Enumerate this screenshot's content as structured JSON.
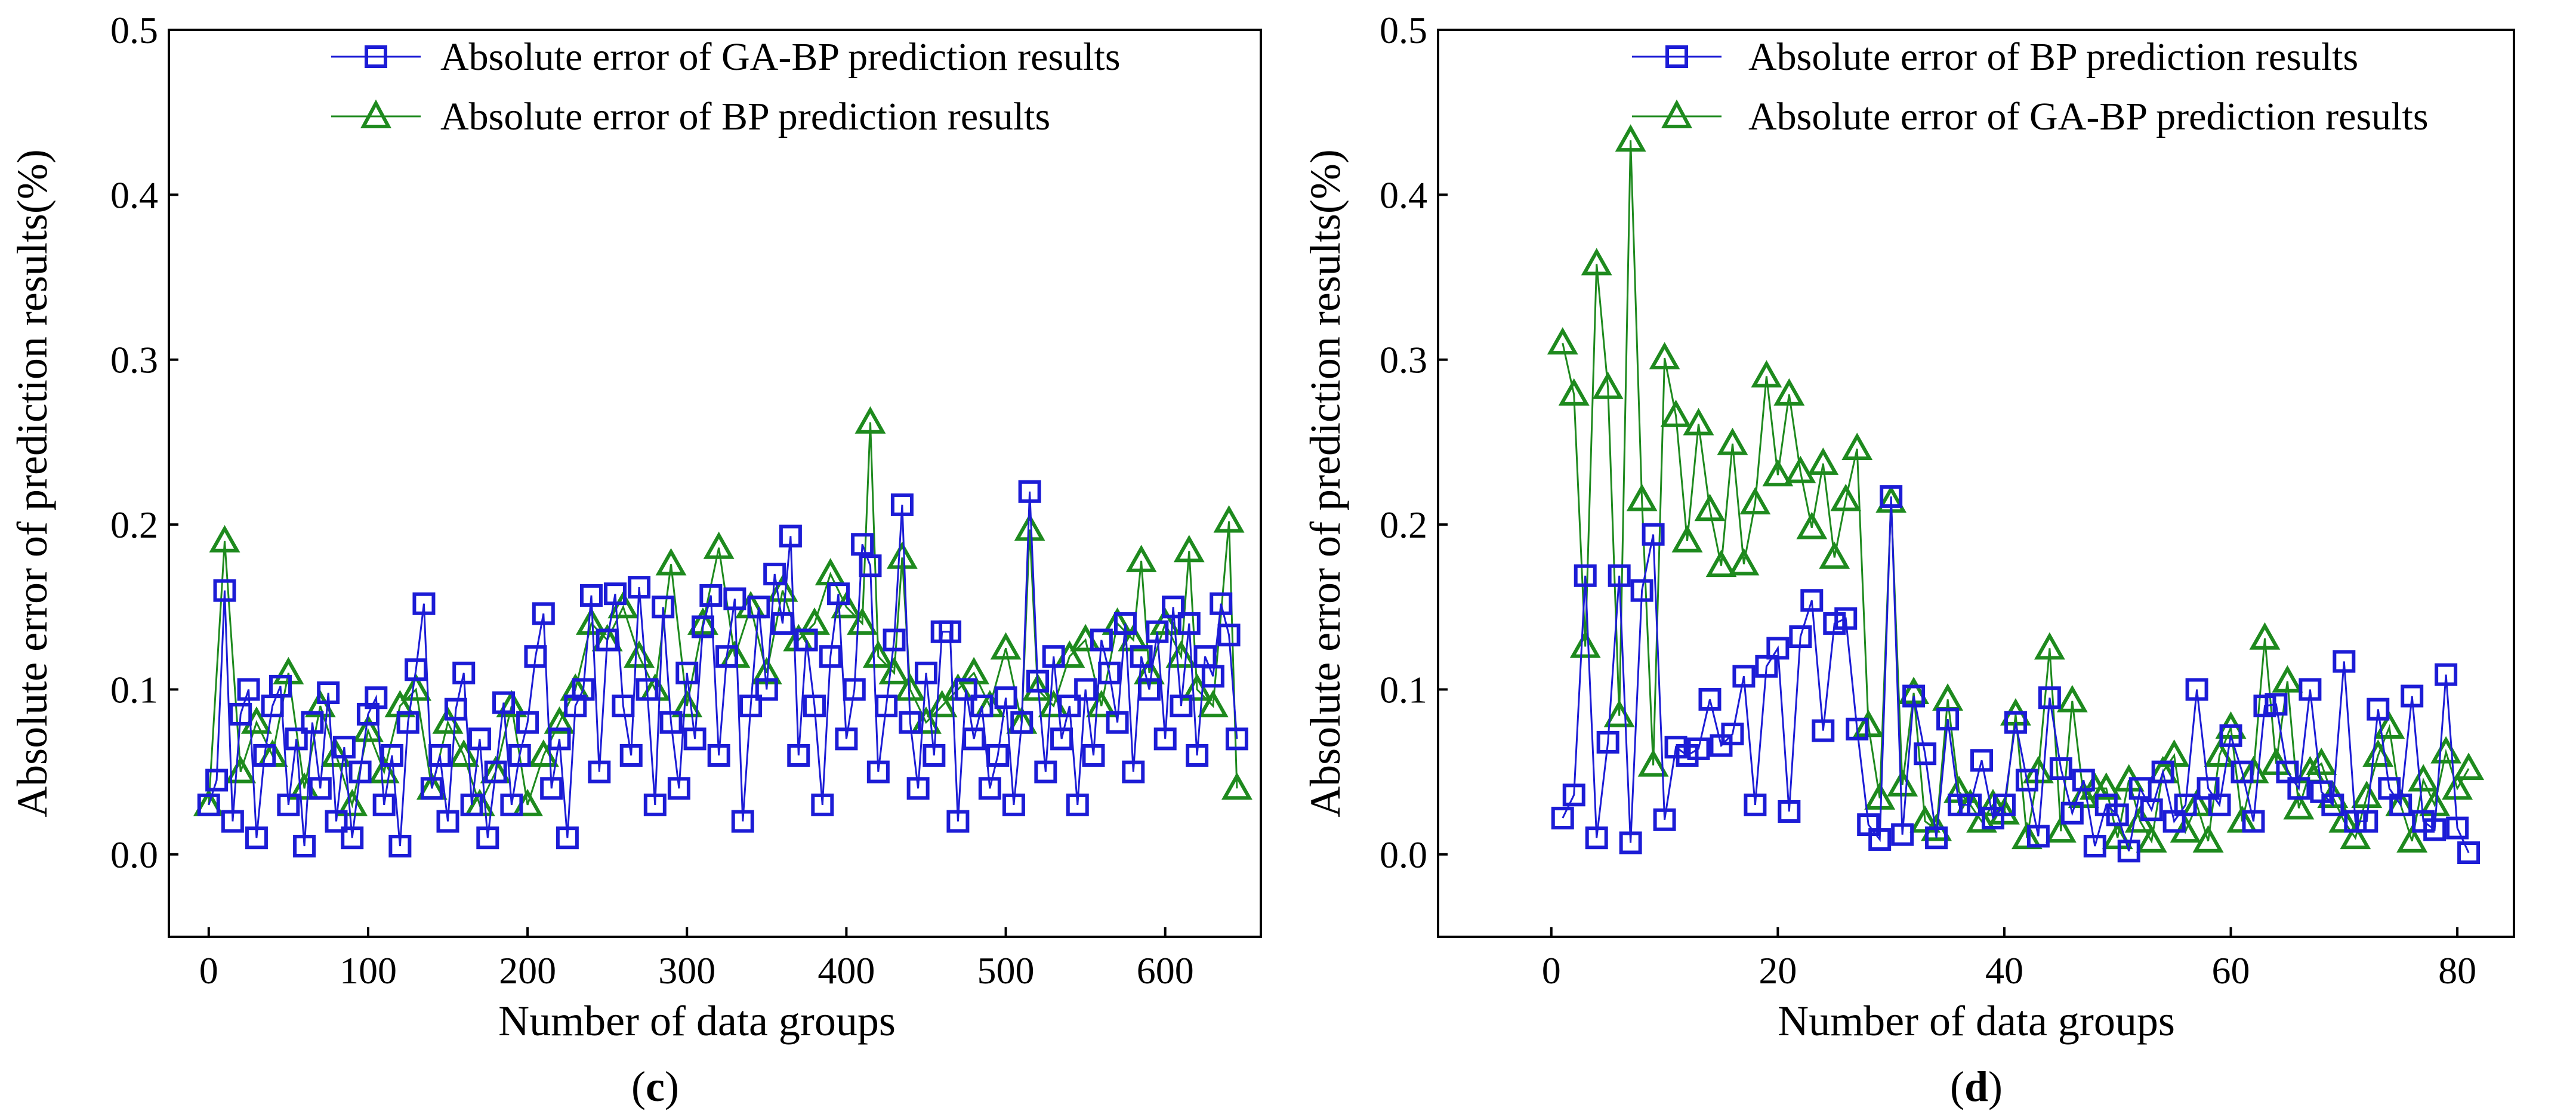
{
  "chart_data": [
    {
      "type": "line",
      "panel_label": {
        "open": "(",
        "letter": "c",
        "close": ")"
      },
      "xlabel": "Number of data groups",
      "ylabel": "Absolute error of prediction results(%)",
      "xlim": [
        -25,
        660
      ],
      "ylim": [
        -0.05,
        0.5
      ],
      "xticks": [
        0,
        100,
        200,
        300,
        400,
        500,
        600
      ],
      "xtick_labels": [
        "0",
        "100",
        "200",
        "300",
        "400",
        "500",
        "600"
      ],
      "yticks": [
        0.0,
        0.1,
        0.2,
        0.3,
        0.4,
        0.5
      ],
      "ytick_labels": [
        "0.0",
        "0.1",
        "0.2",
        "0.3",
        "0.4",
        "0.5"
      ],
      "legend": "top-right",
      "note": "Dense series of ~650 points; representative values read from the figure.",
      "series": [
        {
          "name": "Absolute error of GA-BP prediction results",
          "marker": "square",
          "color": "#1c1cd6",
          "x": [
            0,
            5,
            10,
            15,
            20,
            25,
            30,
            35,
            40,
            45,
            50,
            55,
            60,
            65,
            70,
            75,
            80,
            85,
            90,
            95,
            100,
            105,
            110,
            115,
            120,
            125,
            130,
            135,
            140,
            145,
            150,
            155,
            160,
            165,
            170,
            175,
            180,
            185,
            190,
            195,
            200,
            205,
            210,
            215,
            220,
            225,
            230,
            235,
            240,
            245,
            250,
            255,
            260,
            265,
            270,
            275,
            280,
            285,
            290,
            295,
            300,
            305,
            310,
            315,
            320,
            325,
            330,
            335,
            340,
            345,
            350,
            355,
            360,
            365,
            370,
            375,
            380,
            385,
            390,
            395,
            400,
            405,
            410,
            415,
            420,
            425,
            430,
            435,
            440,
            445,
            450,
            455,
            460,
            465,
            470,
            475,
            480,
            485,
            490,
            495,
            500,
            505,
            510,
            515,
            520,
            525,
            530,
            535,
            540,
            545,
            550,
            555,
            560,
            565,
            570,
            575,
            580,
            585,
            590,
            595,
            600,
            605,
            610,
            615,
            620,
            625,
            630,
            635,
            640,
            645
          ],
          "values": [
            0.03,
            0.045,
            0.16,
            0.02,
            0.085,
            0.1,
            0.01,
            0.06,
            0.09,
            0.102,
            0.03,
            0.07,
            0.005,
            0.08,
            0.04,
            0.098,
            0.02,
            0.065,
            0.01,
            0.05,
            0.085,
            0.095,
            0.03,
            0.06,
            0.005,
            0.08,
            0.112,
            0.152,
            0.04,
            0.06,
            0.02,
            0.088,
            0.11,
            0.03,
            0.07,
            0.01,
            0.05,
            0.092,
            0.03,
            0.06,
            0.08,
            0.12,
            0.146,
            0.04,
            0.07,
            0.01,
            0.09,
            0.1,
            0.157,
            0.05,
            0.13,
            0.158,
            0.09,
            0.06,
            0.162,
            0.1,
            0.03,
            0.15,
            0.08,
            0.04,
            0.11,
            0.07,
            0.138,
            0.157,
            0.06,
            0.12,
            0.155,
            0.02,
            0.09,
            0.15,
            0.1,
            0.17,
            0.14,
            0.193,
            0.06,
            0.13,
            0.09,
            0.03,
            0.12,
            0.158,
            0.07,
            0.1,
            0.188,
            0.175,
            0.05,
            0.09,
            0.13,
            0.212,
            0.08,
            0.04,
            0.11,
            0.06,
            0.135,
            0.135,
            0.02,
            0.1,
            0.07,
            0.09,
            0.04,
            0.06,
            0.095,
            0.03,
            0.08,
            0.22,
            0.105,
            0.05,
            0.12,
            0.07,
            0.09,
            0.03,
            0.1,
            0.06,
            0.13,
            0.11,
            0.08,
            0.14,
            0.05,
            0.12,
            0.1,
            0.135,
            0.07,
            0.15,
            0.09,
            0.14,
            0.06,
            0.12,
            0.108,
            0.152,
            0.133,
            0.07
          ]
        },
        {
          "name": "Absolute error of BP prediction results",
          "marker": "triangle",
          "color": "#1e8a1e",
          "x": [
            0,
            10,
            20,
            30,
            40,
            50,
            60,
            70,
            80,
            90,
            100,
            110,
            120,
            130,
            140,
            150,
            160,
            170,
            180,
            190,
            200,
            210,
            220,
            230,
            240,
            250,
            260,
            270,
            280,
            290,
            300,
            310,
            320,
            330,
            340,
            350,
            360,
            370,
            380,
            390,
            400,
            410,
            415,
            420,
            430,
            435,
            440,
            450,
            460,
            470,
            480,
            490,
            500,
            510,
            515,
            520,
            530,
            540,
            550,
            560,
            570,
            580,
            585,
            590,
            600,
            610,
            615,
            620,
            630,
            640,
            645
          ],
          "values": [
            0.03,
            0.19,
            0.05,
            0.08,
            0.06,
            0.11,
            0.04,
            0.09,
            0.06,
            0.03,
            0.075,
            0.05,
            0.09,
            0.1,
            0.04,
            0.08,
            0.06,
            0.03,
            0.05,
            0.09,
            0.03,
            0.06,
            0.08,
            0.1,
            0.14,
            0.13,
            0.15,
            0.12,
            0.1,
            0.176,
            0.09,
            0.14,
            0.186,
            0.12,
            0.15,
            0.11,
            0.16,
            0.13,
            0.14,
            0.17,
            0.15,
            0.14,
            0.262,
            0.12,
            0.11,
            0.18,
            0.1,
            0.08,
            0.09,
            0.1,
            0.11,
            0.09,
            0.125,
            0.08,
            0.197,
            0.1,
            0.09,
            0.12,
            0.13,
            0.09,
            0.14,
            0.13,
            0.178,
            0.11,
            0.14,
            0.12,
            0.184,
            0.1,
            0.09,
            0.202,
            0.04
          ]
        }
      ]
    },
    {
      "type": "line",
      "panel_label": {
        "open": "(",
        "letter": "d",
        "close": ")"
      },
      "xlabel": "Number of data groups",
      "ylabel": "Absolute error of prediction results(%)",
      "xlim": [
        -10,
        85
      ],
      "ylim": [
        -0.05,
        0.5
      ],
      "xticks": [
        0,
        20,
        40,
        60,
        80
      ],
      "xtick_labels": [
        "0",
        "20",
        "40",
        "60",
        "80"
      ],
      "yticks": [
        0.0,
        0.1,
        0.2,
        0.3,
        0.4,
        0.5
      ],
      "ytick_labels": [
        "0.0",
        "0.1",
        "0.2",
        "0.3",
        "0.4",
        "0.5"
      ],
      "legend": "top-right",
      "series": [
        {
          "name": "Absolute error of BP prediction results",
          "marker": "square",
          "color": "#1c1cd6",
          "x": [
            1,
            2,
            3,
            4,
            5,
            6,
            7,
            8,
            9,
            10,
            11,
            12,
            13,
            14,
            15,
            16,
            17,
            18,
            19,
            20,
            21,
            22,
            23,
            24,
            25,
            26,
            27,
            28,
            29,
            30,
            31,
            32,
            33,
            34,
            35,
            36,
            37,
            38,
            39,
            40,
            41,
            42,
            43,
            44,
            45,
            46,
            47,
            48,
            49,
            50,
            51,
            52,
            53,
            54,
            55,
            56,
            57,
            58,
            59,
            60,
            61,
            62,
            63,
            64,
            65,
            66,
            67,
            68,
            69,
            70,
            71,
            72,
            73,
            74,
            75,
            76,
            77,
            78,
            79,
            80,
            81
          ],
          "values": [
            0.022,
            0.036,
            0.169,
            0.01,
            0.068,
            0.169,
            0.007,
            0.16,
            0.194,
            0.021,
            0.065,
            0.06,
            0.064,
            0.094,
            0.066,
            0.073,
            0.108,
            0.03,
            0.114,
            0.125,
            0.026,
            0.132,
            0.154,
            0.075,
            0.14,
            0.143,
            0.076,
            0.018,
            0.009,
            0.217,
            0.012,
            0.096,
            0.061,
            0.01,
            0.082,
            0.03,
            0.03,
            0.057,
            0.022,
            0.03,
            0.08,
            0.045,
            0.011,
            0.095,
            0.052,
            0.025,
            0.045,
            0.005,
            0.03,
            0.024,
            0.002,
            0.04,
            0.027,
            0.05,
            0.02,
            0.03,
            0.1,
            0.04,
            0.03,
            0.072,
            0.05,
            0.02,
            0.09,
            0.091,
            0.05,
            0.04,
            0.1,
            0.038,
            0.03,
            0.117,
            0.02,
            0.02,
            0.088,
            0.04,
            0.03,
            0.096,
            0.02,
            0.015,
            0.109,
            0.016,
            0.001
          ]
        },
        {
          "name": "Absolute error of GA-BP prediction results",
          "marker": "triangle",
          "color": "#1e8a1e",
          "x": [
            1,
            2,
            3,
            4,
            5,
            6,
            7,
            8,
            9,
            10,
            11,
            12,
            13,
            14,
            15,
            16,
            17,
            18,
            19,
            20,
            21,
            22,
            23,
            24,
            25,
            26,
            27,
            28,
            29,
            30,
            31,
            32,
            33,
            34,
            35,
            36,
            37,
            38,
            39,
            40,
            41,
            42,
            43,
            44,
            45,
            46,
            47,
            48,
            49,
            50,
            51,
            52,
            53,
            54,
            55,
            56,
            57,
            58,
            59,
            60,
            61,
            62,
            63,
            64,
            65,
            66,
            67,
            68,
            69,
            70,
            71,
            72,
            73,
            74,
            75,
            76,
            77,
            78,
            79,
            80,
            81
          ],
          "values": [
            0.31,
            0.279,
            0.126,
            0.358,
            0.283,
            0.084,
            0.433,
            0.215,
            0.054,
            0.301,
            0.266,
            0.19,
            0.261,
            0.209,
            0.175,
            0.249,
            0.176,
            0.213,
            0.29,
            0.23,
            0.279,
            0.232,
            0.198,
            0.237,
            0.18,
            0.215,
            0.246,
            0.078,
            0.034,
            0.214,
            0.042,
            0.098,
            0.02,
            0.015,
            0.094,
            0.038,
            0.03,
            0.02,
            0.03,
            0.025,
            0.085,
            0.01,
            0.05,
            0.125,
            0.014,
            0.093,
            0.035,
            0.04,
            0.04,
            0.01,
            0.045,
            0.02,
            0.008,
            0.05,
            0.06,
            0.014,
            0.03,
            0.008,
            0.06,
            0.077,
            0.02,
            0.05,
            0.131,
            0.055,
            0.105,
            0.028,
            0.05,
            0.055,
            0.035,
            0.02,
            0.01,
            0.035,
            0.06,
            0.077,
            0.03,
            0.008,
            0.045,
            0.03,
            0.062,
            0.04,
            0.052
          ]
        }
      ]
    }
  ]
}
